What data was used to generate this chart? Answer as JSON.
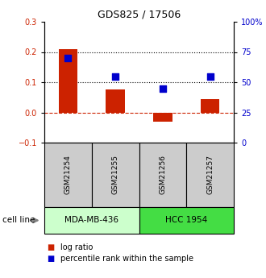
{
  "title": "GDS825 / 17506",
  "samples": [
    "GSM21254",
    "GSM21255",
    "GSM21256",
    "GSM21257"
  ],
  "log_ratio": [
    0.21,
    0.075,
    -0.03,
    0.045
  ],
  "percentile_rank": [
    70,
    55,
    45,
    55
  ],
  "left_ylim": [
    -0.1,
    0.3
  ],
  "right_ylim": [
    0,
    100
  ],
  "left_yticks": [
    -0.1,
    0,
    0.1,
    0.2,
    0.3
  ],
  "right_yticks": [
    0,
    25,
    50,
    75,
    100
  ],
  "right_yticklabels": [
    "0",
    "25",
    "50",
    "75",
    "100%"
  ],
  "dotted_hlines": [
    0.1,
    0.2
  ],
  "dashed_hline": 0,
  "bar_color": "#cc2200",
  "square_color": "#0000cc",
  "cell_lines": [
    {
      "label": "MDA-MB-436",
      "samples": [
        0,
        1
      ],
      "color": "#ccffcc"
    },
    {
      "label": "HCC 1954",
      "samples": [
        2,
        3
      ],
      "color": "#44dd44"
    }
  ],
  "sample_box_color": "#cccccc",
  "legend_red_label": "log ratio",
  "legend_blue_label": "percentile rank within the sample",
  "cell_line_label": "cell line",
  "bg_color": "#ffffff"
}
